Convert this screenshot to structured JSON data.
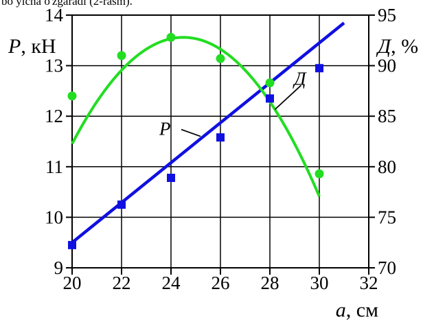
{
  "caption_fragment": "bo yicha o'zgaradi (2-rasm).",
  "chart_data": {
    "type": "line",
    "x_axis": {
      "symbol": "a",
      "unit": "см",
      "range": [
        20,
        32
      ],
      "ticks": [
        20,
        22,
        24,
        26,
        28,
        30,
        32
      ]
    },
    "y_left": {
      "symbol": "P",
      "unit": "кН",
      "range": [
        9,
        14
      ],
      "ticks": [
        9,
        10,
        11,
        12,
        13,
        14
      ]
    },
    "y_right": {
      "symbol": "Д",
      "unit": "%",
      "range": [
        70,
        95
      ],
      "ticks": [
        70,
        75,
        80,
        85,
        90,
        95
      ]
    },
    "grid": true,
    "series": [
      {
        "name": "P",
        "axis": "left",
        "color": "#1010e0",
        "marker": "square",
        "points": [
          [
            20,
            9.45
          ],
          [
            22,
            10.25
          ],
          [
            24,
            10.78
          ],
          [
            26,
            11.58
          ],
          [
            28,
            12.35
          ],
          [
            30,
            12.95
          ]
        ],
        "fit": {
          "kind": "linear",
          "x_start": 20,
          "x_end": 31,
          "slope": 0.395,
          "intercept": 1.6
        }
      },
      {
        "name": "Д",
        "axis": "right",
        "color": "#22dd22",
        "marker": "circle",
        "points": [
          [
            20,
            87.0
          ],
          [
            22,
            91.0
          ],
          [
            24,
            92.8
          ],
          [
            26,
            90.7
          ],
          [
            28,
            88.3
          ],
          [
            30,
            79.3
          ]
        ],
        "fit": {
          "kind": "quadratic",
          "x_start": 20,
          "x_end": 30,
          "vertex_x": 24.5,
          "vertex_y": 92.8,
          "a": -0.52
        }
      }
    ]
  }
}
